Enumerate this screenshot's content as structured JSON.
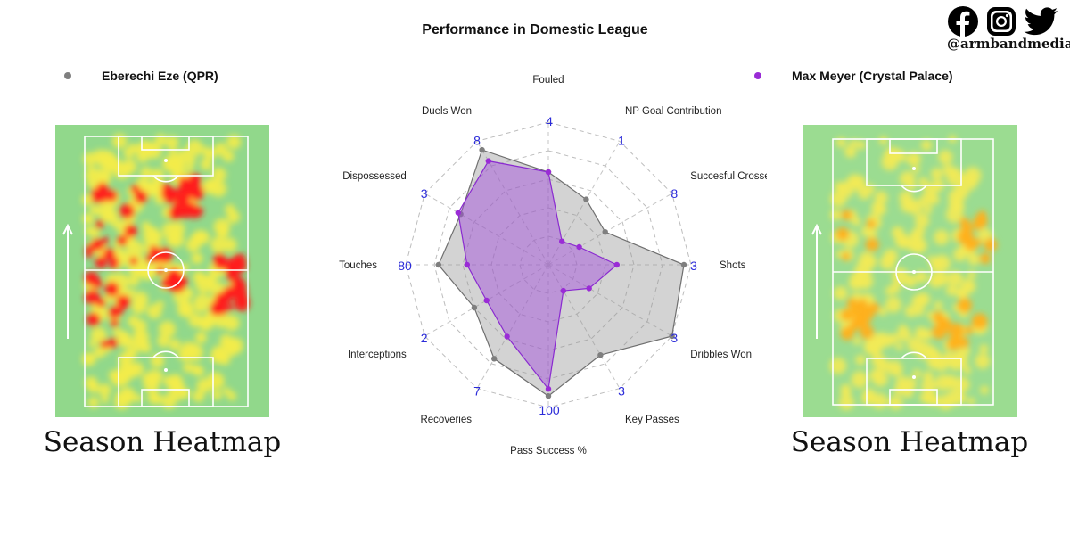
{
  "social": {
    "handle": "@armbandmedia",
    "icons": [
      "facebook-icon",
      "instagram-icon",
      "twitter-icon"
    ]
  },
  "left_player": {
    "name": "Eberechi Eze (QPR)",
    "color": "#7f7f7f",
    "heatmap_caption": "Season Heatmap"
  },
  "right_player": {
    "name": "Max Meyer (Crystal Palace)",
    "color": "#9a2bd6",
    "heatmap_caption": "Season Heatmap"
  },
  "chart_data": {
    "type": "radar",
    "title": "Performance in Domestic League",
    "axes": [
      "Fouled",
      "NP Goal Contribution",
      "Succesful Crosses",
      "Shots",
      "Dribbles Won",
      "Key Passes",
      "Pass Success %",
      "Recoveries",
      "Interceptions",
      "Touches",
      "Dispossessed",
      "Duels Won"
    ],
    "axis_max_labels": [
      "4",
      "1",
      "8",
      "3",
      "3",
      "3",
      "100",
      "7",
      "2",
      "80",
      "3",
      "8"
    ],
    "rings": 5,
    "series": [
      {
        "name": "Eberechi Eze (QPR)",
        "color": "#7f7f7f",
        "values": [
          0.65,
          0.53,
          0.46,
          0.95,
          1.0,
          0.73,
          0.92,
          0.76,
          0.6,
          0.77,
          0.71,
          0.93
        ]
      },
      {
        "name": "Max Meyer (Crystal Palace)",
        "color": "#9a2bd6",
        "values": [
          0.65,
          0.19,
          0.25,
          0.48,
          0.33,
          0.21,
          0.87,
          0.58,
          0.5,
          0.57,
          0.73,
          0.84
        ]
      }
    ]
  }
}
